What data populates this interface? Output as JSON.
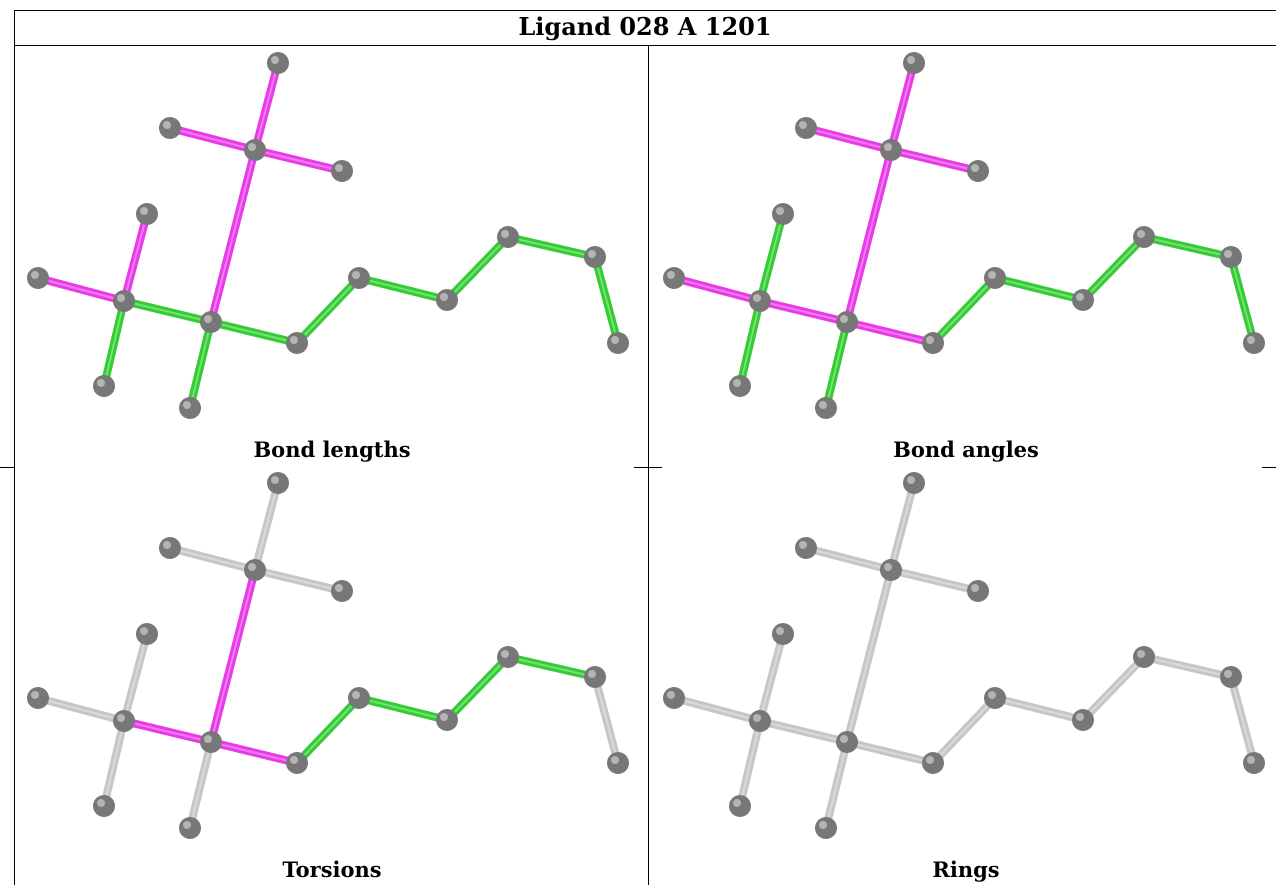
{
  "title": "Ligand 028 A 1201",
  "panels": [
    {
      "caption": "Bond lengths"
    },
    {
      "caption": "Bond angles"
    },
    {
      "caption": "Torsions"
    },
    {
      "caption": "Rings"
    }
  ],
  "colors": {
    "outlier": "#e83ae8",
    "ok": "#33cc33",
    "neutral": "#c6c6c6",
    "atom": "#777777"
  }
}
